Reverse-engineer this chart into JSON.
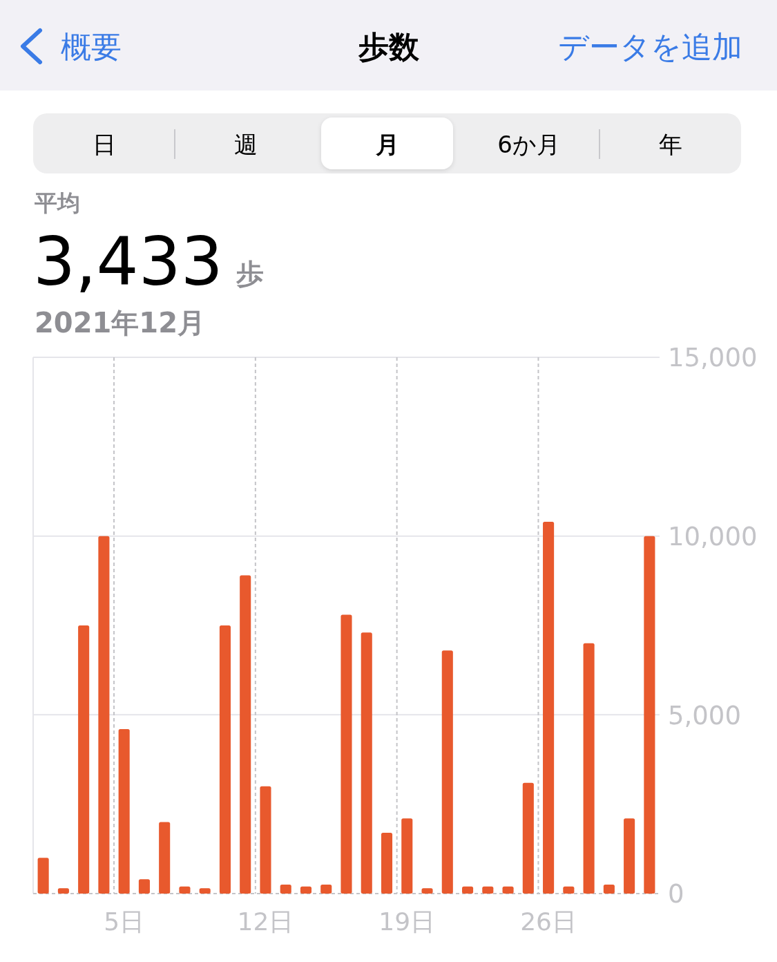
{
  "chart_data": {
    "type": "bar",
    "title": "歩数",
    "subtitle": "2021年12月",
    "annotations": [
      "概要",
      "データを追加",
      "日",
      "週",
      "月",
      "6か月",
      "年",
      "平均",
      "3,433",
      "歩"
    ],
    "categories": [
      null,
      null,
      null,
      null,
      "5日",
      null,
      null,
      null,
      null,
      null,
      null,
      "12日",
      null,
      null,
      null,
      null,
      null,
      null,
      "19日",
      null,
      null,
      null,
      null,
      null,
      null,
      "26日",
      null,
      null,
      null,
      null,
      null
    ],
    "values": [
      1000,
      150,
      7500,
      10000,
      4600,
      400,
      2000,
      200,
      150,
      7500,
      8900,
      3000,
      250,
      200,
      250,
      7800,
      7300,
      1700,
      2100,
      150,
      6800,
      200,
      200,
      200,
      3100,
      10400,
      200,
      7000,
      250,
      2100,
      10000
    ],
    "color": "#e8592d",
    "ylim": [
      0,
      15000
    ],
    "yticks": [
      0,
      {
        "value": 5000,
        "label": "5,000"
      },
      {
        "value": 10000,
        "label": "10,000"
      },
      {
        "value": 15000,
        "label": "15,000"
      }
    ],
    "grid": true
  }
}
